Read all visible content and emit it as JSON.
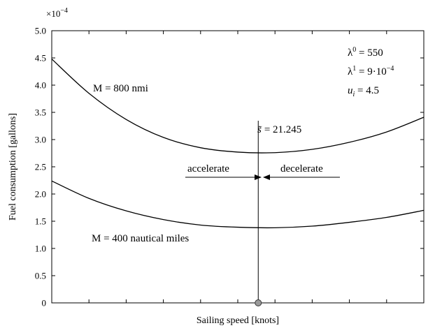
{
  "chart_data": {
    "type": "line",
    "title": "",
    "xlabel": "Sailing speed [knots]",
    "ylabel": "Fuel consumption [gallons]",
    "y_scale_label": "×10",
    "y_scale_exponent": "−4",
    "x_tick_labels": [],
    "y_ticks": [
      "0",
      "0.5",
      "1.0",
      "1.5",
      "2.0",
      "2.5",
      "3.0",
      "3.5",
      "4.0",
      "4.5",
      "5.0"
    ],
    "ylim": [
      0,
      5.0
    ],
    "grid": false,
    "series": [
      {
        "name": "M = 800 nmi",
        "x": [
          0.0,
          0.1,
          0.2,
          0.3,
          0.4,
          0.5,
          0.6,
          0.7,
          0.8,
          0.9,
          1.0
        ],
        "values": [
          4.48,
          3.85,
          3.37,
          3.04,
          2.85,
          2.77,
          2.76,
          2.82,
          2.95,
          3.14,
          3.41
        ]
      },
      {
        "name": "M = 400 nautical miles",
        "x": [
          0.0,
          0.1,
          0.2,
          0.3,
          0.4,
          0.5,
          0.6,
          0.7,
          0.8,
          0.9,
          1.0
        ],
        "values": [
          2.24,
          1.92,
          1.69,
          1.53,
          1.43,
          1.39,
          1.38,
          1.41,
          1.48,
          1.57,
          1.7
        ]
      }
    ],
    "vertical_marker": {
      "label_symbol": "s̃",
      "label_value": "= 21.245",
      "x_fraction": 0.555
    },
    "arrows": {
      "left_label": "accelerate",
      "right_label": "decelerate"
    },
    "parameters": [
      {
        "sym": "λ",
        "sup": "0",
        "rest": " = 550"
      },
      {
        "sym": "λ",
        "sup": "1",
        "rest": " = 9·10",
        "sup2": "−4"
      },
      {
        "sym": "u",
        "sub": "i",
        "rest": " = 4.5"
      }
    ]
  }
}
